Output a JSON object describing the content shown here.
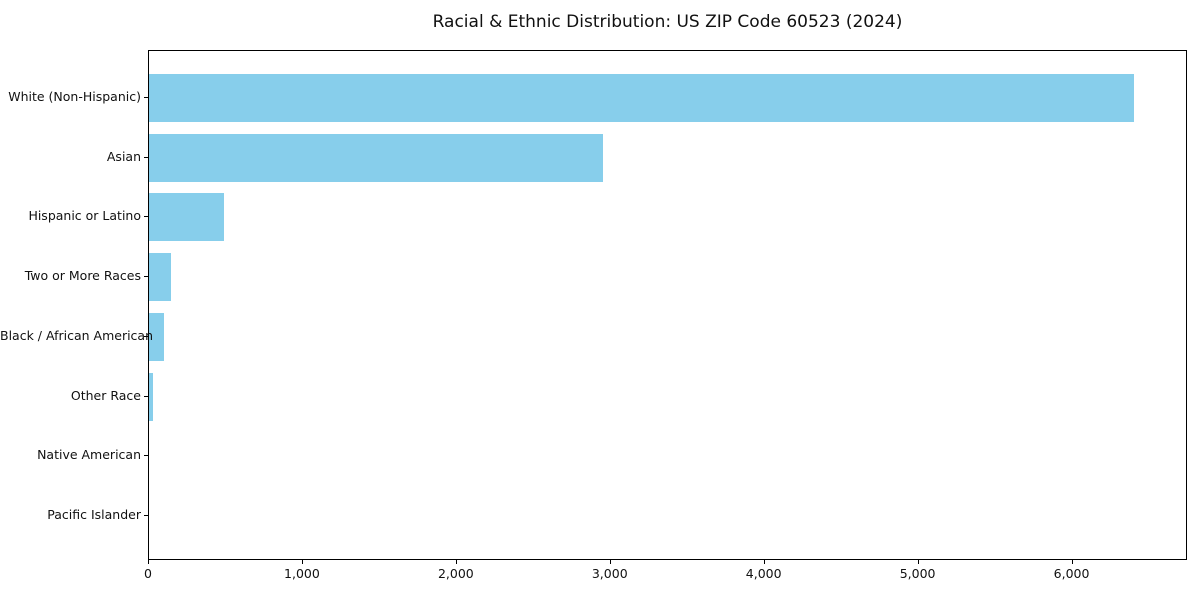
{
  "chart_data": {
    "type": "bar",
    "orientation": "horizontal",
    "title": "Racial & Ethnic Distribution: US ZIP Code 60523 (2024)",
    "categories": [
      "White (Non-Hispanic)",
      "Asian",
      "Hispanic or Latino",
      "Two or More Races",
      "Black / African American",
      "Other Race",
      "Native American",
      "Pacific Islander"
    ],
    "values": [
      6400,
      2950,
      485,
      145,
      100,
      25,
      0,
      0
    ],
    "xlabel": "",
    "ylabel": "",
    "xlim": [
      0,
      6750
    ],
    "xticks": [
      0,
      1000,
      2000,
      3000,
      4000,
      5000,
      6000
    ],
    "xtick_labels": [
      "0",
      "1,000",
      "2,000",
      "3,000",
      "4,000",
      "5,000",
      "6,000"
    ],
    "grid": false,
    "legend": null,
    "bar_color": "#87CEEB",
    "spine_color": "#000000",
    "text_color": "#111111",
    "background_color": "#ffffff"
  }
}
